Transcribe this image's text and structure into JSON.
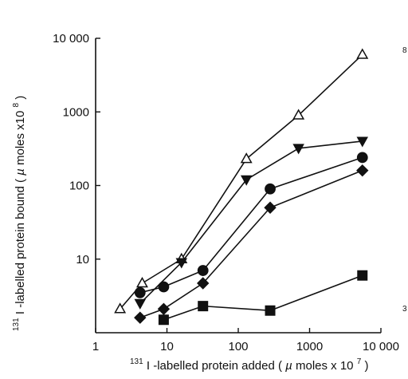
{
  "chart_data": {
    "type": "line",
    "title": "",
    "xlabel": {
      "text": "-labelled protein added (µmoles x 10)",
      "prefix_sup": "131",
      "prefix_main": "I",
      "main": "-labelled protein added (",
      "mu": "µ",
      "unit": "moles x 10",
      "exp": "7",
      "close": ")"
    },
    "ylabel": {
      "text": "-labelled protein bound (µmoles x10)",
      "prefix_sup": "131",
      "prefix_main": "I",
      "main": "-labelled protein bound (",
      "mu": "µ",
      "unit": "moles x10",
      "exp": "8",
      "close": ")"
    },
    "x_scale": "log",
    "y_scale": "log",
    "xlim": [
      1,
      10000
    ],
    "ylim": [
      1,
      10000
    ],
    "x_ticks": [
      {
        "value": 1,
        "label": "1"
      },
      {
        "value": 10,
        "label": "10"
      },
      {
        "value": 100,
        "label": "100"
      },
      {
        "value": 1000,
        "label": "1000"
      },
      {
        "value": 10000,
        "label": "10 000"
      }
    ],
    "y_ticks": [
      {
        "value": 10,
        "label": "10"
      },
      {
        "value": 100,
        "label": "100"
      },
      {
        "value": 1000,
        "label": "1000"
      },
      {
        "value": 10000,
        "label": "10 000"
      }
    ],
    "grid": false,
    "legend": "none",
    "series": [
      {
        "marker": "open-triangle-up",
        "points": [
          {
            "x": 2.2,
            "y": 2.1
          },
          {
            "x": 4.5,
            "y": 4.7
          },
          {
            "x": 16,
            "y": 10
          },
          {
            "x": 130,
            "y": 230
          },
          {
            "x": 700,
            "y": 900
          },
          {
            "x": 5500,
            "y": 6000
          }
        ]
      },
      {
        "marker": "filled-triangle-down",
        "points": [
          {
            "x": 4.2,
            "y": 2.5
          },
          {
            "x": 16,
            "y": 9
          },
          {
            "x": 130,
            "y": 120
          },
          {
            "x": 700,
            "y": 320
          },
          {
            "x": 5500,
            "y": 400
          }
        ]
      },
      {
        "marker": "filled-circle",
        "points": [
          {
            "x": 4.2,
            "y": 3.5
          },
          {
            "x": 9,
            "y": 4.2
          },
          {
            "x": 32,
            "y": 7
          },
          {
            "x": 280,
            "y": 90
          },
          {
            "x": 5500,
            "y": 240
          }
        ]
      },
      {
        "marker": "filled-diamond",
        "points": [
          {
            "x": 4.2,
            "y": 1.6
          },
          {
            "x": 9,
            "y": 2.1
          },
          {
            "x": 32,
            "y": 4.7
          },
          {
            "x": 280,
            "y": 50
          },
          {
            "x": 5500,
            "y": 160
          }
        ]
      },
      {
        "marker": "filled-square",
        "points": [
          {
            "x": 9,
            "y": 1.5
          },
          {
            "x": 32,
            "y": 2.3
          },
          {
            "x": 280,
            "y": 2.0
          },
          {
            "x": 5500,
            "y": 6
          }
        ]
      }
    ]
  },
  "edge_fragments": [
    "8",
    "3"
  ]
}
